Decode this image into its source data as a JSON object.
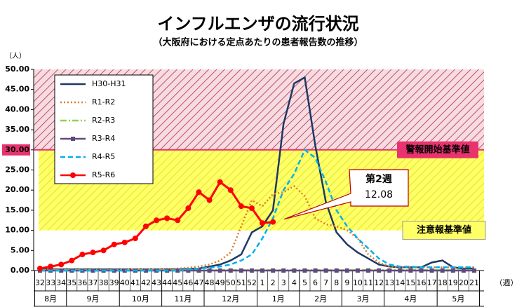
{
  "chart_data": {
    "type": "line",
    "title": "インフルエンザの流行状況",
    "subtitle": "（大阪府における定点あたりの患者報告数の推移）",
    "y_unit": "（人）",
    "x_unit": "（週）",
    "categories": [
      "32",
      "33",
      "34",
      "35",
      "36",
      "37",
      "38",
      "39",
      "40",
      "41",
      "42",
      "43",
      "44",
      "45",
      "46",
      "47",
      "48",
      "49",
      "50",
      "51",
      "52",
      "1",
      "2",
      "3",
      "4",
      "5",
      "6",
      "7",
      "8",
      "9",
      "10",
      "11",
      "12",
      "13",
      "14",
      "15",
      "16",
      "17",
      "18",
      "19",
      "20",
      "21"
    ],
    "months": [
      "8月",
      "9月",
      "10月",
      "11月",
      "12月",
      "1月",
      "2月",
      "3月",
      "4月",
      "5月"
    ],
    "ylim": [
      0,
      50
    ],
    "yticks": [
      {
        "value": 0,
        "label": "0.00"
      },
      {
        "value": 5,
        "label": "5.00"
      },
      {
        "value": 10,
        "label": "10.00"
      },
      {
        "value": 15,
        "label": "15.00"
      },
      {
        "value": 20,
        "label": "20.00"
      },
      {
        "value": 25,
        "label": "25.00"
      },
      {
        "value": 30,
        "label": "30.00"
      },
      {
        "value": 35,
        "label": "35.00"
      },
      {
        "value": 40,
        "label": "40.00"
      },
      {
        "value": 45,
        "label": "45.00"
      },
      {
        "value": 50,
        "label": "50.00"
      }
    ],
    "warning_level": {
      "value": 30,
      "label": "警報開始基準値",
      "color": "#e8336f"
    },
    "advisory_level": {
      "value": 10,
      "label": "注意報基準値",
      "color": "#ffff66"
    },
    "annotation": [
      "第2週",
      "12.08"
    ],
    "series": [
      {
        "name": "H30-H31",
        "color": "#1f3864",
        "style": "solid",
        "values": [
          0.3,
          0.3,
          0.3,
          0.3,
          0.3,
          0.3,
          0.3,
          0.3,
          0.3,
          0.3,
          0.3,
          0.3,
          0.3,
          0.3,
          0.4,
          0.5,
          1,
          1.5,
          2.5,
          4,
          9.5,
          11,
          15,
          36.5,
          46.5,
          48,
          31,
          17,
          9.5,
          6.5,
          4.5,
          3,
          1.5,
          1,
          0.8,
          0.8,
          0.8,
          2,
          2.5,
          0.8,
          0.5,
          0.5
        ]
      },
      {
        "name": "R1-R2",
        "color": "#e07b28",
        "style": "dotted",
        "values": [
          0.2,
          0.2,
          0.2,
          0.2,
          0.2,
          0.2,
          0.2,
          0.2,
          0.3,
          0.3,
          0.3,
          0.3,
          0.4,
          0.5,
          0.7,
          1,
          1.5,
          2.5,
          4.5,
          11,
          17.5,
          16,
          19,
          19.5,
          21,
          18.5,
          13,
          11.5,
          11,
          10,
          8,
          4,
          2,
          1,
          0.8,
          0.8,
          0.8,
          0.8,
          0.8,
          0.8,
          0.8,
          0.8
        ]
      },
      {
        "name": "R2-R3",
        "color": "#92d050",
        "style": "dashdot",
        "values": [
          0.1,
          0.1,
          0.1,
          0.1,
          0.1,
          0.1,
          0.1,
          0.1,
          0.1,
          0.1,
          0.1,
          0.1,
          0.1,
          0.1,
          0.1,
          0.1,
          0.1,
          0.1,
          0.1,
          0.1,
          0.1,
          0.1,
          0.1,
          0.1,
          0.1,
          0.1,
          0.1,
          0.1,
          0.1,
          0.1,
          0.1,
          0.1,
          0.1,
          0.1,
          0.1,
          0.1,
          0.1,
          0.1,
          0.1,
          0.1,
          0.1,
          0.1
        ]
      },
      {
        "name": "R3-R4",
        "color": "#604a7b",
        "style": "solid",
        "marker": "square",
        "values": [
          0,
          0,
          0,
          0,
          0,
          0,
          0,
          0,
          0,
          0,
          0,
          0,
          0,
          0,
          0,
          0,
          0,
          0,
          0,
          0,
          0,
          0,
          0,
          0,
          0,
          0,
          0,
          0,
          0,
          0,
          0,
          0,
          0,
          0,
          0,
          0,
          0,
          0,
          0,
          0,
          0,
          0
        ]
      },
      {
        "name": "R4-R5",
        "color": "#00b0f0",
        "style": "dashed",
        "values": [
          0,
          0,
          0,
          0,
          0,
          0,
          0,
          0,
          0,
          0,
          0,
          0,
          0,
          0,
          0.3,
          0.5,
          0.7,
          1,
          1.5,
          2.5,
          4,
          8,
          13,
          20,
          24,
          30,
          28,
          22,
          15,
          11,
          8,
          5.5,
          3,
          1.5,
          1,
          1,
          0.8,
          0.8,
          0.8,
          0.8,
          0.8,
          0.8
        ]
      },
      {
        "name": "R5-R6",
        "color": "#ff0000",
        "style": "solid",
        "marker": "circle",
        "values": [
          0.5,
          1,
          1.5,
          2.5,
          4,
          4.5,
          5,
          6.5,
          7,
          8,
          11,
          12.5,
          13,
          12.5,
          15.5,
          19.5,
          17.5,
          22,
          20,
          16,
          15.5,
          11.8,
          12.08,
          null,
          null,
          null,
          null,
          null,
          null,
          null,
          null,
          null,
          null,
          null,
          null,
          null,
          null,
          null,
          null,
          null,
          null,
          null
        ]
      }
    ]
  }
}
